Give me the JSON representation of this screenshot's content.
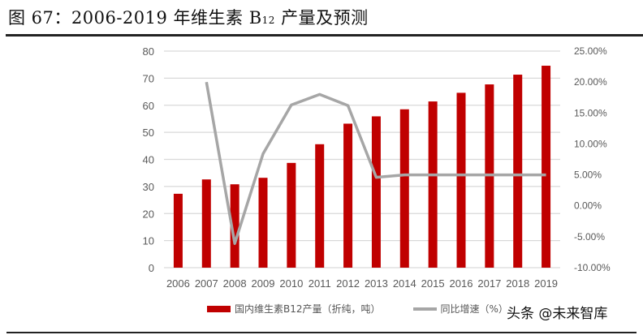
{
  "title": {
    "prefix": "图 67：2006-2019 年维生素 B",
    "sub": "12",
    "suffix": " 产量及预测"
  },
  "legend": {
    "bar_label": "国内维生素B12产量（折纯，吨）",
    "line_label": "同比增速（%）"
  },
  "watermark": "头条 @未来智库",
  "colors": {
    "bar": "#c00000",
    "line": "#a6a6a6",
    "grid": "#d9d9d9",
    "axis_text": "#595959"
  },
  "chart_data": {
    "type": "bar+line",
    "title": "2006-2019 年维生素 B12 产量及预测",
    "categories": [
      "2006",
      "2007",
      "2008",
      "2009",
      "2010",
      "2011",
      "2012",
      "2013",
      "2014",
      "2015",
      "2016",
      "2017",
      "2018",
      "2019"
    ],
    "series": [
      {
        "name": "国内维生素B12产量（折纯，吨）",
        "type": "bar",
        "axis": "left",
        "values": [
          27.3,
          32.6,
          30.8,
          33.2,
          38.7,
          45.6,
          53.2,
          55.9,
          58.5,
          61.4,
          64.6,
          67.7,
          71.3,
          74.6
        ]
      },
      {
        "name": "同比增速（%）",
        "type": "line",
        "axis": "right",
        "values": [
          null,
          20.0,
          -6.1,
          8.4,
          16.3,
          18.0,
          16.2,
          4.6,
          5.0,
          5.0,
          5.0,
          5.0,
          5.0,
          5.0
        ]
      }
    ],
    "left_axis": {
      "ylim": [
        0,
        80
      ],
      "ticks": [
        "0",
        "10",
        "20",
        "30",
        "40",
        "50",
        "60",
        "70",
        "80"
      ]
    },
    "right_axis": {
      "ylim": [
        -10,
        25
      ],
      "ticks": [
        "-10.00%",
        "-5.00%",
        "0.00%",
        "5.00%",
        "10.00%",
        "15.00%",
        "20.00%",
        "25.00%"
      ]
    },
    "xlabel": "",
    "ylabel": "",
    "grid": true,
    "legend_position": "bottom"
  }
}
